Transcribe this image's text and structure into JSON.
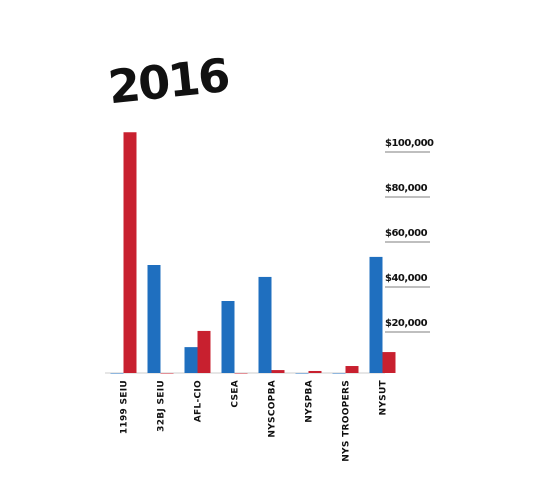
{
  "chart_data": {
    "type": "bar",
    "title": "2016",
    "categories": [
      "1199 SEIU",
      "32BJ SEIU",
      "AFL-CIO",
      "CSEA",
      "NYSCOPBA",
      "NYSPBA",
      "NYS TROOPERS",
      "NYSUT"
    ],
    "series": [
      {
        "color": "#1f6fbf",
        "values": [
          0,
          48000,
          11500,
          32000,
          42700,
          0,
          0,
          51600
        ]
      },
      {
        "color": "#c8202f",
        "values": [
          107000,
          0,
          18700,
          0,
          1300,
          900,
          3100,
          9300
        ]
      }
    ],
    "ylim": [
      0,
      110000
    ],
    "yticks": [
      {
        "value": 20000,
        "label": "$20,000"
      },
      {
        "value": 40000,
        "label": "$40,000"
      },
      {
        "value": 60000,
        "label": "$60,000"
      },
      {
        "value": 80000,
        "label": "$80,000"
      },
      {
        "value": 100000,
        "label": "$100,000"
      }
    ],
    "grid": true
  }
}
